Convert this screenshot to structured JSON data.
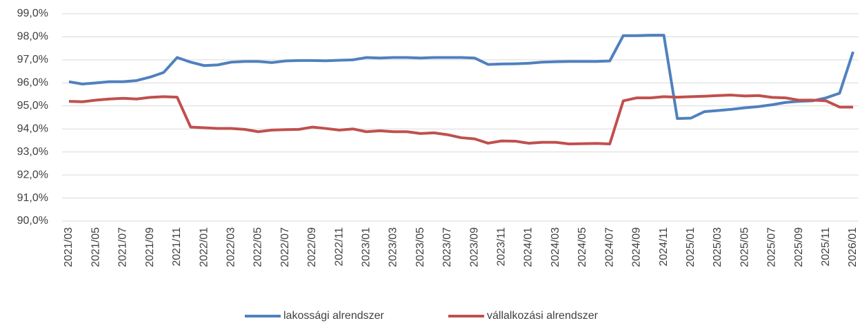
{
  "chart_data": {
    "type": "line",
    "categories": [
      "2021/03",
      null,
      "2021/05",
      null,
      "2021/07",
      null,
      "2021/09",
      null,
      "2021/11",
      null,
      "2022/01",
      null,
      "2022/03",
      null,
      "2022/05",
      null,
      "2022/07",
      null,
      "2022/09",
      null,
      "2022/11",
      null,
      "2023/01",
      null,
      "2023/03",
      null,
      "2023/05",
      null,
      "2023/07",
      null,
      "2023/09",
      null,
      "2023/11",
      null,
      "2024/01",
      null,
      "2024/03",
      null,
      "2024/05",
      null,
      "2024/07",
      null,
      "2024/09",
      null,
      "2024/11",
      null,
      "2025/01",
      null,
      "2025/03",
      null,
      "2025/05",
      null,
      "2025/07",
      null,
      "2025/09",
      null,
      "2025/11",
      null,
      "2026/01"
    ],
    "series": [
      {
        "name": "lakossági alrendszer",
        "color": "#4f81bd",
        "values": [
          96.05,
          95.95,
          96.0,
          96.05,
          96.05,
          96.1,
          96.25,
          96.45,
          97.1,
          96.9,
          96.75,
          96.78,
          96.9,
          96.93,
          96.93,
          96.88,
          96.95,
          96.97,
          96.97,
          96.96,
          96.98,
          97.0,
          97.1,
          97.08,
          97.1,
          97.1,
          97.08,
          97.1,
          97.1,
          97.1,
          97.08,
          96.8,
          96.82,
          96.83,
          96.85,
          96.9,
          96.92,
          96.93,
          96.93,
          96.93,
          96.95,
          98.05,
          98.05,
          98.07,
          98.07,
          94.45,
          94.47,
          94.75,
          94.8,
          94.85,
          94.92,
          94.97,
          95.05,
          95.15,
          95.2,
          95.22,
          95.35,
          95.55,
          97.35
        ]
      },
      {
        "name": "vállalkozási alrendszer",
        "color": "#c0504d",
        "values": [
          95.2,
          95.18,
          95.25,
          95.3,
          95.33,
          95.3,
          95.37,
          95.4,
          95.38,
          94.08,
          94.05,
          94.02,
          94.02,
          93.98,
          93.88,
          93.95,
          93.97,
          93.98,
          94.08,
          94.02,
          93.95,
          94.0,
          93.88,
          93.92,
          93.88,
          93.88,
          93.8,
          93.83,
          93.75,
          93.62,
          93.57,
          93.38,
          93.48,
          93.47,
          93.38,
          93.42,
          93.42,
          93.35,
          93.36,
          93.37,
          93.35,
          95.22,
          95.35,
          95.35,
          95.4,
          95.38,
          95.4,
          95.42,
          95.45,
          95.47,
          95.43,
          95.45,
          95.37,
          95.35,
          95.25,
          95.25,
          95.22,
          94.95,
          94.95
        ]
      }
    ],
    "ylim": [
      90,
      99
    ],
    "yticks": [
      {
        "value": 90,
        "label": "90,0%"
      },
      {
        "value": 91,
        "label": "91,0%"
      },
      {
        "value": 92,
        "label": "92,0%"
      },
      {
        "value": 93,
        "label": "93,0%"
      },
      {
        "value": 94,
        "label": "94,0%"
      },
      {
        "value": 95,
        "label": "95,0%"
      },
      {
        "value": 96,
        "label": "96,0%"
      },
      {
        "value": 97,
        "label": "97,0%"
      },
      {
        "value": 98,
        "label": "98,0%"
      },
      {
        "value": 99,
        "label": "99,0%"
      }
    ],
    "grid": true,
    "legend": "bottom"
  }
}
